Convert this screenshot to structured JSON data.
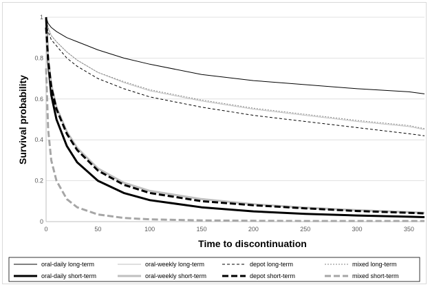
{
  "chart_data": {
    "type": "line",
    "title": "",
    "xlabel": "Time to discontinuation",
    "ylabel": "Survival probability",
    "xlim": [
      0,
      365
    ],
    "ylim": [
      0,
      1
    ],
    "x_ticks": [
      0,
      50,
      100,
      150,
      200,
      250,
      300,
      350
    ],
    "y_ticks": [
      0,
      0.2,
      0.4,
      0.6,
      0.8,
      1
    ],
    "y_tick_labels": [
      "0",
      "0.2",
      "0.4",
      "0.6",
      "0.8",
      "1"
    ],
    "grid": "horizontal",
    "legend_position": "bottom",
    "x": [
      0,
      2,
      5,
      10,
      20,
      30,
      50,
      75,
      100,
      150,
      200,
      250,
      300,
      350,
      365
    ],
    "series": [
      {
        "name": "oral-daily long-term",
        "color": "#000000",
        "width": 1.0,
        "dash": "solid",
        "values": [
          1.0,
          0.97,
          0.95,
          0.93,
          0.9,
          0.88,
          0.84,
          0.8,
          0.77,
          0.72,
          0.69,
          0.67,
          0.65,
          0.635,
          0.625
        ]
      },
      {
        "name": "oral-weekly long-term",
        "color": "#bfbfbf",
        "width": 1.0,
        "dash": "solid",
        "values": [
          1.0,
          0.95,
          0.91,
          0.88,
          0.83,
          0.79,
          0.73,
          0.68,
          0.64,
          0.59,
          0.55,
          0.52,
          0.49,
          0.465,
          0.45
        ]
      },
      {
        "name": "depot long-term",
        "color": "#000000",
        "width": 1.0,
        "dash": "4,3",
        "values": [
          0.97,
          0.93,
          0.89,
          0.86,
          0.8,
          0.76,
          0.7,
          0.65,
          0.61,
          0.56,
          0.52,
          0.49,
          0.46,
          0.43,
          0.42
        ]
      },
      {
        "name": "mixed long-term",
        "color": "#808080",
        "width": 1.0,
        "dash": "2,2",
        "values": [
          1.0,
          0.95,
          0.91,
          0.88,
          0.83,
          0.79,
          0.73,
          0.685,
          0.645,
          0.595,
          0.555,
          0.525,
          0.495,
          0.47,
          0.455
        ]
      },
      {
        "name": "oral-daily short-term",
        "color": "#000000",
        "width": 3.0,
        "dash": "solid",
        "values": [
          1.0,
          0.78,
          0.62,
          0.5,
          0.37,
          0.29,
          0.2,
          0.14,
          0.105,
          0.07,
          0.05,
          0.038,
          0.03,
          0.024,
          0.022
        ]
      },
      {
        "name": "oral-weekly short-term",
        "color": "#bfbfbf",
        "width": 3.0,
        "dash": "solid",
        "values": [
          0.95,
          0.8,
          0.67,
          0.56,
          0.44,
          0.36,
          0.26,
          0.19,
          0.15,
          0.11,
          0.085,
          0.068,
          0.056,
          0.046,
          0.043
        ]
      },
      {
        "name": "depot short-term",
        "color": "#000000",
        "width": 3.0,
        "dash": "9,4",
        "values": [
          0.95,
          0.79,
          0.66,
          0.55,
          0.43,
          0.35,
          0.25,
          0.18,
          0.14,
          0.1,
          0.08,
          0.065,
          0.052,
          0.043,
          0.04
        ]
      },
      {
        "name": "mixed short-term",
        "color": "#a6a6a6",
        "width": 3.0,
        "dash": "9,4",
        "values": [
          0.75,
          0.45,
          0.3,
          0.2,
          0.11,
          0.07,
          0.035,
          0.018,
          0.011,
          0.006,
          0.004,
          0.003,
          0.003,
          0.003,
          0.003
        ]
      }
    ]
  }
}
